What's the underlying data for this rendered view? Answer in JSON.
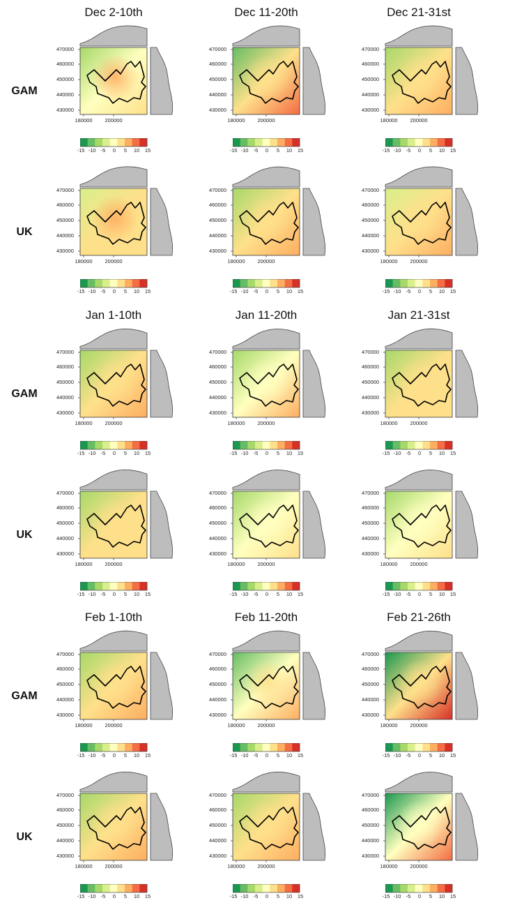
{
  "chart_data": {
    "type": "heatmap",
    "periods": [
      "Dec 2-10th",
      "Dec 11-20th",
      "Dec 21-31st",
      "Jan 1-10th",
      "Jan 11-20th",
      "Jan 21-31st",
      "Feb 1-10th",
      "Feb 11-20th",
      "Feb 21-26th"
    ],
    "methods": [
      "GAM",
      "UK"
    ],
    "x_ticks": [
      "180000",
      "200000"
    ],
    "y_ticks": [
      "470000",
      "460000",
      "450000",
      "440000",
      "430000"
    ],
    "legend_ticks": [
      "-15",
      "-10",
      "-5",
      "0",
      "5",
      "10",
      "15"
    ],
    "legend_colors": [
      "#1a9850",
      "#66bd63",
      "#a6d96a",
      "#d9ef8b",
      "#ffffbf",
      "#fee08b",
      "#fdae61",
      "#f46d43",
      "#d73027"
    ],
    "value_range": [
      -15,
      15
    ],
    "panels": [
      {
        "period": "Dec 2-10th",
        "method": "GAM",
        "center": 6,
        "nw": -6,
        "se": 3
      },
      {
        "period": "Dec 11-20th",
        "method": "GAM",
        "center": 5,
        "nw": -10,
        "se": 12
      },
      {
        "period": "Dec 21-31st",
        "method": "GAM",
        "center": 5,
        "nw": -6,
        "se": 8
      },
      {
        "period": "Dec 2-10th",
        "method": "UK",
        "center": 6,
        "nw": -5,
        "se": 4
      },
      {
        "period": "Dec 11-20th",
        "method": "UK",
        "center": 3,
        "nw": -8,
        "se": 7
      },
      {
        "period": "Dec 21-31st",
        "method": "UK",
        "center": 5,
        "nw": -4,
        "se": 6
      },
      {
        "period": "Jan 1-10th",
        "method": "GAM",
        "center": 2,
        "nw": -7,
        "se": 7
      },
      {
        "period": "Jan 11-20th",
        "method": "GAM",
        "center": 1,
        "nw": -7,
        "se": 7
      },
      {
        "period": "Jan 21-31st",
        "method": "GAM",
        "center": 3,
        "nw": -6,
        "se": 4
      },
      {
        "period": "Jan 1-10th",
        "method": "UK",
        "center": 2,
        "nw": -6,
        "se": 5
      },
      {
        "period": "Jan 11-20th",
        "method": "UK",
        "center": 1,
        "nw": -7,
        "se": 5
      },
      {
        "period": "Jan 21-31st",
        "method": "UK",
        "center": 1,
        "nw": -6,
        "se": 3
      },
      {
        "period": "Feb 1-10th",
        "method": "GAM",
        "center": 3,
        "nw": -9,
        "se": 7
      },
      {
        "period": "Feb 11-20th",
        "method": "GAM",
        "center": 3,
        "nw": -11,
        "se": 7
      },
      {
        "period": "Feb 21-26th",
        "method": "GAM",
        "center": 2,
        "nw": -15,
        "se": 14
      },
      {
        "period": "Feb 1-10th",
        "method": "UK",
        "center": 2,
        "nw": -8,
        "se": 7
      },
      {
        "period": "Feb 11-20th",
        "method": "UK",
        "center": 2,
        "nw": -9,
        "se": 7
      },
      {
        "period": "Feb 21-26th",
        "method": "UK",
        "center": 1,
        "nw": -15,
        "se": 13
      }
    ]
  }
}
